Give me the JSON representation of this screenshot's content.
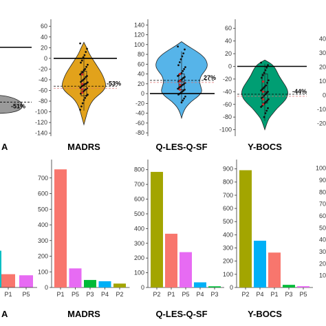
{
  "chart_data": [
    {
      "type": "violin",
      "panel": "top-partial-left",
      "title": "A",
      "percent_label": "-51%",
      "fill": "#9a9a9a",
      "ylim": [
        -130,
        70
      ],
      "median": -78,
      "mean": -72
    },
    {
      "type": "violin",
      "title": "MADRS",
      "yticks": [
        60,
        40,
        20,
        0,
        -20,
        -40,
        -60,
        -80,
        -100,
        -120,
        -140
      ],
      "ylim": [
        -143,
        68
      ],
      "percent_label": "-53%",
      "fill": "#e2a21b",
      "zero_line": 0,
      "mean": -52,
      "box": {
        "q1": -70,
        "median": -48,
        "q3": -24,
        "whisker_low": -98,
        "whisker_high": 4
      },
      "points": [
        28,
        18,
        12,
        6,
        2,
        -4,
        -8,
        -12,
        -16,
        -20,
        -22,
        -26,
        -28,
        -30,
        -33,
        -35,
        -38,
        -40,
        -42,
        -44,
        -45,
        -47,
        -48,
        -50,
        -51,
        -53,
        -55,
        -56,
        -58,
        -60,
        -62,
        -64,
        -66,
        -68,
        -70,
        -74,
        -78,
        -84,
        -90,
        -96
      ],
      "red_points": [
        -30,
        -48,
        -58,
        -64
      ]
    },
    {
      "type": "violin",
      "title": "Q-LES-Q-SF",
      "yticks": [
        140,
        120,
        100,
        80,
        60,
        40,
        20,
        0,
        -20,
        -40,
        -60,
        -80
      ],
      "ylim": [
        -84,
        146
      ],
      "percent_label": "27%",
      "fill": "#56b4e9",
      "zero_line": 0,
      "mean": 27,
      "box": {
        "q1": 8,
        "median": 24,
        "q3": 40,
        "whisker_low": -18,
        "whisker_high": 86
      },
      "points": [
        96,
        90,
        82,
        76,
        70,
        64,
        58,
        54,
        50,
        46,
        42,
        40,
        38,
        36,
        34,
        32,
        30,
        28,
        26,
        24,
        22,
        20,
        18,
        16,
        14,
        12,
        10,
        8,
        6,
        4,
        2,
        0,
        -2,
        -6,
        -10,
        -14,
        -18
      ],
      "red_points": [
        40,
        26,
        18,
        8
      ]
    },
    {
      "type": "violin",
      "title": "Y-BOCS",
      "yticks": [
        60,
        40,
        20,
        0,
        -20,
        -40,
        -60,
        -80,
        -100
      ],
      "ylim": [
        -108,
        70
      ],
      "percent_label": "-44%",
      "fill": "#009e73",
      "zero_line": 0,
      "mean": -44,
      "box": {
        "q1": -58,
        "median": -40,
        "q3": -12,
        "whisker_low": -86,
        "whisker_high": 4
      },
      "points": [
        6,
        2,
        -2,
        -6,
        -10,
        -14,
        -18,
        -22,
        -26,
        -30,
        -32,
        -34,
        -36,
        -38,
        -40,
        -42,
        -44,
        -46,
        -48,
        -50,
        -52,
        -54,
        -56,
        -58,
        -60,
        -62,
        -64,
        -66,
        -70,
        -74,
        -80
      ],
      "red_points": [
        -24,
        -40,
        -52,
        -60
      ]
    },
    {
      "type": "violin",
      "panel": "top-partial-right",
      "yticks": [
        40,
        30,
        20,
        10,
        0,
        -10,
        -20
      ],
      "ylim": [
        -28,
        52
      ]
    },
    {
      "type": "bar",
      "panel": "bottom-partial-left",
      "title": "A",
      "categories": [
        "P1",
        "P5"
      ],
      "values": [
        85,
        78
      ],
      "colors": [
        "#f8766d",
        "#e76bf3"
      ],
      "ylim": [
        0,
        800
      ],
      "partial_bar": {
        "value": 235,
        "color": "#00bfc4"
      }
    },
    {
      "type": "bar",
      "title": "MADRS",
      "categories": [
        "P1",
        "P5",
        "P3",
        "P4",
        "P2"
      ],
      "values": [
        755,
        122,
        48,
        40,
        25
      ],
      "colors": [
        "#f8766d",
        "#e76bf3",
        "#00ba38",
        "#00b0f6",
        "#a3a500"
      ],
      "yticks": [
        0,
        100,
        200,
        300,
        400,
        500,
        600,
        700
      ],
      "ylim": [
        0,
        800
      ]
    },
    {
      "type": "bar",
      "title": "Q-LES-Q-SF",
      "categories": [
        "P2",
        "P1",
        "P5",
        "P4",
        "P3"
      ],
      "values": [
        785,
        365,
        240,
        35,
        8
      ],
      "colors": [
        "#a3a500",
        "#f8766d",
        "#e76bf3",
        "#00b0f6",
        "#00ba38"
      ],
      "yticks": [
        0,
        100,
        200,
        300,
        400,
        500,
        600,
        700,
        800
      ],
      "ylim": [
        0,
        850
      ]
    },
    {
      "type": "bar",
      "title": "Y-BOCS",
      "categories": [
        "P2",
        "P4",
        "P1",
        "P3",
        "P5"
      ],
      "values": [
        890,
        355,
        265,
        20,
        10
      ],
      "colors": [
        "#a3a500",
        "#00b0f6",
        "#f8766d",
        "#00ba38",
        "#e76bf3"
      ],
      "yticks": [
        0,
        100,
        200,
        300,
        400,
        500,
        600,
        700,
        800,
        900
      ],
      "ylim": [
        0,
        950
      ]
    },
    {
      "type": "bar",
      "panel": "bottom-partial-right",
      "yticks": [
        100,
        90,
        80,
        70,
        60,
        50,
        40,
        30,
        20,
        10
      ],
      "ylim": [
        0,
        105
      ]
    }
  ]
}
